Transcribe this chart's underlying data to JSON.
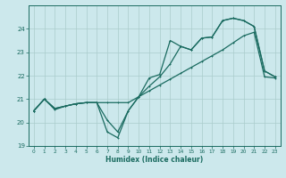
{
  "xlabel": "Humidex (Indice chaleur)",
  "bg_color": "#cce8ec",
  "grid_color": "#aacccc",
  "line_color": "#1a6b60",
  "xmin": -0.5,
  "xmax": 23.5,
  "ymin": 19,
  "ymax": 25,
  "yticks": [
    19,
    20,
    21,
    22,
    23,
    24
  ],
  "xticks": [
    0,
    1,
    2,
    3,
    4,
    5,
    6,
    7,
    8,
    9,
    10,
    11,
    12,
    13,
    14,
    15,
    16,
    17,
    18,
    19,
    20,
    21,
    22,
    23
  ],
  "line1_x": [
    0,
    1,
    2,
    3,
    4,
    5,
    6,
    7,
    8,
    9,
    10,
    11,
    12,
    13,
    14,
    15,
    16,
    17,
    18,
    19,
    20,
    21,
    22,
    23
  ],
  "line1_y": [
    20.5,
    21.0,
    20.6,
    20.7,
    20.8,
    20.85,
    20.85,
    19.6,
    19.35,
    20.5,
    21.1,
    21.9,
    22.05,
    23.5,
    23.25,
    23.1,
    23.6,
    23.65,
    24.35,
    24.45,
    24.35,
    24.1,
    22.2,
    21.95
  ],
  "line2_x": [
    0,
    1,
    2,
    3,
    4,
    5,
    6,
    7,
    8,
    9,
    10,
    11,
    12,
    13,
    14,
    15,
    16,
    17,
    18,
    19,
    20,
    21,
    22,
    23
  ],
  "line2_y": [
    20.5,
    21.0,
    20.55,
    20.7,
    20.8,
    20.85,
    20.85,
    20.85,
    20.85,
    20.85,
    21.1,
    21.35,
    21.6,
    21.85,
    22.1,
    22.35,
    22.6,
    22.85,
    23.1,
    23.4,
    23.7,
    23.85,
    21.95,
    21.9
  ],
  "line3_x": [
    0,
    1,
    2,
    3,
    4,
    5,
    6,
    7,
    8,
    9,
    10,
    11,
    12,
    13,
    14,
    15,
    16,
    17,
    18,
    19,
    20,
    21,
    22,
    23
  ],
  "line3_y": [
    20.5,
    21.0,
    20.6,
    20.7,
    20.8,
    20.85,
    20.85,
    20.1,
    19.6,
    20.5,
    21.1,
    21.55,
    21.95,
    22.5,
    23.25,
    23.1,
    23.6,
    23.65,
    24.35,
    24.45,
    24.35,
    24.1,
    22.2,
    21.95
  ]
}
